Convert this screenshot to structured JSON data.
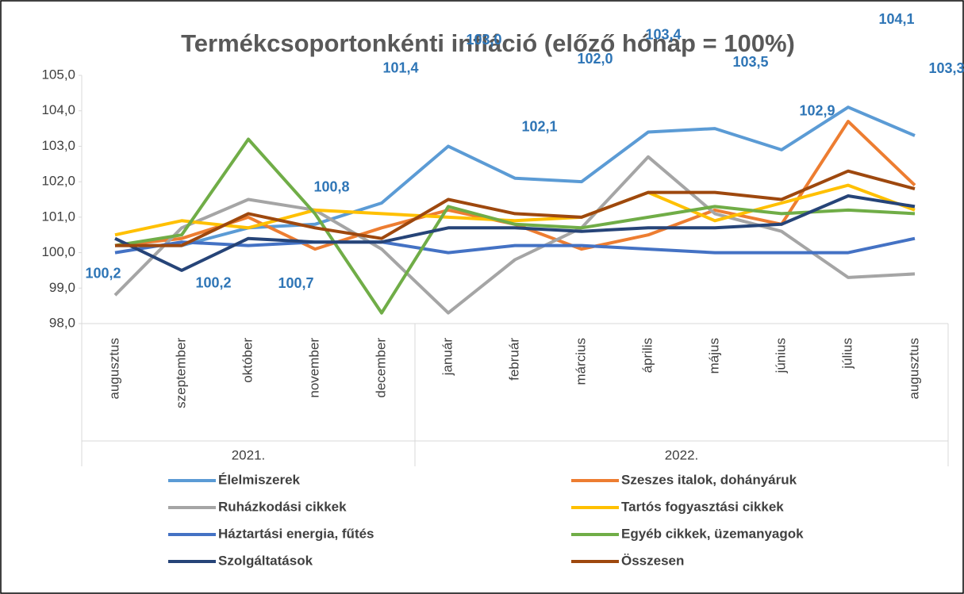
{
  "chart_data": {
    "type": "line",
    "title": "Termékcsoportonkénti infláció (előző hónap = 100%)",
    "categories": [
      "augusztus",
      "szeptember",
      "október",
      "november",
      "december",
      "január",
      "február",
      "március",
      "április",
      "május",
      "június",
      "július",
      "augusztus"
    ],
    "x_groups": [
      {
        "label": "2021.",
        "span": 5
      },
      {
        "label": "2022.",
        "span": 8
      }
    ],
    "ylim": [
      98,
      105
    ],
    "yticks": [
      {
        "value": 98,
        "label": "98,0"
      },
      {
        "value": 99,
        "label": "99,0"
      },
      {
        "value": 100,
        "label": "100,0"
      },
      {
        "value": 101,
        "label": "101,0"
      },
      {
        "value": 102,
        "label": "102,0"
      },
      {
        "value": 103,
        "label": "103,0"
      },
      {
        "value": 104,
        "label": "104,0"
      },
      {
        "value": 105,
        "label": "105,0"
      }
    ],
    "grid": false,
    "legend": "bottom",
    "series": [
      {
        "name": "Élelmiszerek",
        "color": "#5b9bd5",
        "values": [
          100.2,
          100.2,
          100.7,
          100.8,
          101.4,
          103.0,
          102.1,
          102.0,
          103.4,
          103.5,
          102.9,
          104.1,
          103.3
        ],
        "value_labels": [
          "100,2",
          "100,2",
          "100,7",
          "100,8",
          "101,4",
          "103,0",
          "102,1",
          "102,0",
          "103,4",
          "103,5",
          "102,9",
          "104,1",
          "103,3"
        ]
      },
      {
        "name": "Szeszes italok, dohányáruk",
        "color": "#ed7d31",
        "values": [
          100.2,
          100.4,
          101.0,
          100.1,
          100.7,
          101.2,
          100.8,
          100.1,
          100.5,
          101.2,
          100.8,
          103.7,
          101.9
        ]
      },
      {
        "name": "Ruházkodási cikkek",
        "color": "#a5a5a5",
        "values": [
          98.8,
          100.7,
          101.5,
          101.2,
          100.1,
          98.3,
          99.8,
          100.7,
          102.7,
          101.1,
          100.6,
          99.3,
          99.4
        ]
      },
      {
        "name": "Tartós fogyasztási cikkek",
        "color": "#ffc000",
        "values": [
          100.5,
          100.9,
          100.7,
          101.2,
          101.1,
          101.0,
          100.9,
          101.0,
          101.7,
          100.9,
          101.4,
          101.9,
          101.2
        ]
      },
      {
        "name": "Háztartási energia, fűtés",
        "color": "#4472c4",
        "values": [
          100.0,
          100.3,
          100.2,
          100.3,
          100.3,
          100.0,
          100.2,
          100.2,
          100.1,
          100.0,
          100.0,
          100.0,
          100.4
        ]
      },
      {
        "name": "Egyéb cikkek, üzemanyagok",
        "color": "#70ad47",
        "values": [
          100.2,
          100.5,
          103.2,
          101.1,
          98.3,
          101.3,
          100.8,
          100.7,
          101.0,
          101.3,
          101.1,
          101.2,
          101.1
        ]
      },
      {
        "name": "Szolgáltatások",
        "color": "#264478",
        "values": [
          100.4,
          99.5,
          100.4,
          100.3,
          100.3,
          100.7,
          100.7,
          100.6,
          100.7,
          100.7,
          100.8,
          101.6,
          101.3
        ]
      },
      {
        "name": "Összesen",
        "color": "#9e480e",
        "values": [
          100.2,
          100.2,
          101.1,
          100.7,
          100.4,
          101.5,
          101.1,
          101.0,
          101.7,
          101.7,
          101.5,
          102.3,
          101.8
        ]
      }
    ]
  }
}
